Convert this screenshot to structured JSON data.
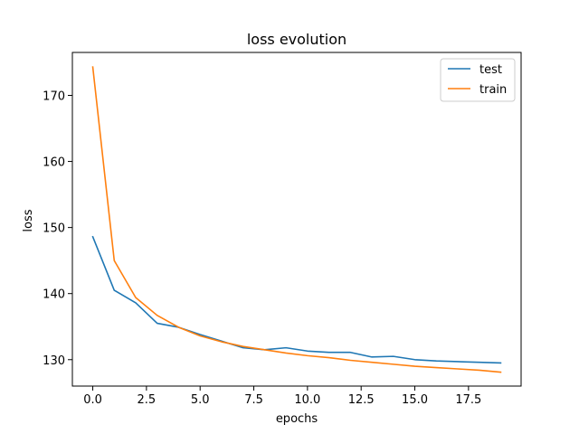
{
  "chart_data": {
    "type": "line",
    "title": "loss evolution",
    "xlabel": "epochs",
    "ylabel": "loss",
    "x": [
      0,
      1,
      2,
      3,
      4,
      5,
      6,
      7,
      8,
      9,
      10,
      11,
      12,
      13,
      14,
      15,
      16,
      17,
      18,
      19
    ],
    "series": [
      {
        "name": "test",
        "color": "#1f77b4",
        "values": [
          148.6,
          140.5,
          138.6,
          135.5,
          134.9,
          133.8,
          132.8,
          131.8,
          131.5,
          131.8,
          131.3,
          131.1,
          131.1,
          130.4,
          130.5,
          130.0,
          129.8,
          129.7,
          129.6,
          129.5
        ]
      },
      {
        "name": "train",
        "color": "#ff7f0e",
        "values": [
          174.3,
          145.0,
          139.4,
          136.7,
          134.9,
          133.6,
          132.7,
          132.0,
          131.5,
          131.0,
          130.6,
          130.3,
          129.9,
          129.6,
          129.3,
          129.0,
          128.8,
          128.6,
          128.4,
          128.1
        ]
      }
    ],
    "xlim": [
      -0.95,
      19.95
    ],
    "ylim": [
      126.0,
      176.5
    ],
    "xticks": [
      0.0,
      2.5,
      5.0,
      7.5,
      10.0,
      12.5,
      15.0,
      17.5
    ],
    "xtick_labels": [
      "0.0",
      "2.5",
      "5.0",
      "7.5",
      "10.0",
      "12.5",
      "15.0",
      "17.5"
    ],
    "yticks": [
      130,
      140,
      150,
      160,
      170
    ],
    "ytick_labels": [
      "130",
      "140",
      "150",
      "160",
      "170"
    ],
    "grid": false,
    "legend_position": "top-right"
  }
}
